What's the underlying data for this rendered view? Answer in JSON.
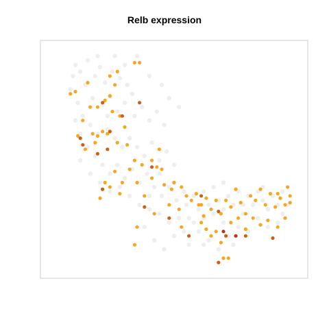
{
  "chart_data": {
    "type": "scatter",
    "title": "Relb expression",
    "xlabel": "",
    "ylabel": "",
    "xlim": [
      0,
      100
    ],
    "ylim": [
      0,
      100
    ],
    "axes_visible": false,
    "grid": false,
    "legend": "none",
    "colors": {
      "background": "#ebebeb",
      "low": "#f5a623",
      "mid": "#c8621a",
      "high": "#b03a1e",
      "frame": "#cccccc"
    },
    "series": [
      {
        "level": "background",
        "points": [
          [
            10,
            93
          ],
          [
            12,
            90
          ],
          [
            15,
            95
          ],
          [
            18,
            88
          ],
          [
            20,
            92
          ],
          [
            22,
            85
          ],
          [
            25,
            90
          ],
          [
            28,
            87
          ],
          [
            30,
            93
          ],
          [
            33,
            80
          ],
          [
            14,
            84
          ],
          [
            17,
            78
          ],
          [
            21,
            75
          ],
          [
            24,
            79
          ],
          [
            27,
            72
          ],
          [
            30,
            76
          ],
          [
            34,
            70
          ],
          [
            37,
            74
          ],
          [
            40,
            68
          ],
          [
            43,
            72
          ],
          [
            46,
            66
          ],
          [
            8,
            82
          ],
          [
            11,
            76
          ],
          [
            13,
            70
          ],
          [
            16,
            66
          ],
          [
            19,
            62
          ],
          [
            23,
            64
          ],
          [
            26,
            60
          ],
          [
            29,
            56
          ],
          [
            32,
            60
          ],
          [
            35,
            56
          ],
          [
            38,
            52
          ],
          [
            41,
            58
          ],
          [
            44,
            50
          ],
          [
            47,
            54
          ],
          [
            50,
            48
          ],
          [
            10,
            68
          ],
          [
            12,
            62
          ],
          [
            15,
            56
          ],
          [
            18,
            52
          ],
          [
            21,
            48
          ],
          [
            24,
            44
          ],
          [
            27,
            48
          ],
          [
            30,
            42
          ],
          [
            33,
            46
          ],
          [
            36,
            40
          ],
          [
            39,
            44
          ],
          [
            42,
            38
          ],
          [
            45,
            34
          ],
          [
            48,
            38
          ],
          [
            51,
            32
          ],
          [
            16,
            44
          ],
          [
            20,
            40
          ],
          [
            24,
            36
          ],
          [
            28,
            38
          ],
          [
            32,
            34
          ],
          [
            36,
            30
          ],
          [
            40,
            28
          ],
          [
            44,
            26
          ],
          [
            48,
            22
          ],
          [
            52,
            24
          ],
          [
            38,
            20
          ],
          [
            42,
            14
          ],
          [
            46,
            10
          ],
          [
            50,
            16
          ],
          [
            54,
            18
          ],
          [
            56,
            24
          ],
          [
            58,
            22
          ],
          [
            60,
            28
          ],
          [
            62,
            24
          ],
          [
            64,
            30
          ],
          [
            66,
            26
          ],
          [
            68,
            32
          ],
          [
            70,
            28
          ],
          [
            72,
            34
          ],
          [
            74,
            30
          ],
          [
            76,
            36
          ],
          [
            78,
            30
          ],
          [
            80,
            34
          ],
          [
            82,
            30
          ],
          [
            84,
            36
          ],
          [
            86,
            32
          ],
          [
            88,
            28
          ],
          [
            90,
            34
          ],
          [
            92,
            30
          ],
          [
            94,
            26
          ],
          [
            96,
            30
          ],
          [
            62,
            36
          ],
          [
            66,
            38
          ],
          [
            70,
            40
          ],
          [
            58,
            34
          ],
          [
            55,
            30
          ],
          [
            60,
            18
          ],
          [
            64,
            14
          ],
          [
            68,
            10
          ],
          [
            72,
            16
          ],
          [
            76,
            20
          ],
          [
            80,
            18
          ],
          [
            84,
            24
          ],
          [
            88,
            20
          ],
          [
            92,
            22
          ],
          [
            74,
            12
          ],
          [
            78,
            26
          ],
          [
            50,
            40
          ],
          [
            54,
            36
          ],
          [
            26,
            97
          ],
          [
            35,
            97
          ],
          [
            40,
            88
          ],
          [
            45,
            84
          ],
          [
            48,
            78
          ],
          [
            52,
            74
          ],
          [
            9,
            88
          ],
          [
            31,
            84
          ],
          [
            19,
            97
          ],
          [
            23,
            70
          ],
          [
            12,
            50
          ],
          [
            44,
            44
          ],
          [
            40,
            34
          ],
          [
            56,
            12
          ],
          [
            62,
            12
          ],
          [
            86,
            38
          ],
          [
            94,
            36
          ],
          [
            70,
            22
          ]
        ]
      },
      {
        "level": "low",
        "points": [
          [
            34,
            94
          ],
          [
            36,
            94
          ],
          [
            24,
            88
          ],
          [
            10,
            81
          ],
          [
            15,
            85
          ],
          [
            27,
            90
          ],
          [
            26,
            84
          ],
          [
            8,
            80
          ],
          [
            16,
            74
          ],
          [
            19,
            74
          ],
          [
            22,
            77
          ],
          [
            24,
            79
          ],
          [
            25,
            72
          ],
          [
            28,
            70
          ],
          [
            30,
            65
          ],
          [
            13,
            68
          ],
          [
            11,
            61
          ],
          [
            17,
            62
          ],
          [
            19,
            61
          ],
          [
            21,
            63
          ],
          [
            23,
            62
          ],
          [
            18,
            58
          ],
          [
            14,
            55
          ],
          [
            27,
            58
          ],
          [
            31,
            57
          ],
          [
            34,
            50
          ],
          [
            37,
            48
          ],
          [
            41,
            50
          ],
          [
            44,
            55
          ],
          [
            43,
            47
          ],
          [
            22,
            40
          ],
          [
            20,
            33
          ],
          [
            24,
            38
          ],
          [
            26,
            45
          ],
          [
            29,
            40
          ],
          [
            32,
            46
          ],
          [
            35,
            40
          ],
          [
            28,
            35
          ],
          [
            38,
            34
          ],
          [
            41,
            42
          ],
          [
            45,
            46
          ],
          [
            46,
            39
          ],
          [
            50,
            40
          ],
          [
            53,
            38
          ],
          [
            55,
            34
          ],
          [
            57,
            32
          ],
          [
            59,
            35
          ],
          [
            61,
            30
          ],
          [
            63,
            33
          ],
          [
            65,
            28
          ],
          [
            67,
            32
          ],
          [
            69,
            26
          ],
          [
            71,
            32
          ],
          [
            73,
            29
          ],
          [
            75,
            37
          ],
          [
            77,
            31
          ],
          [
            79,
            26
          ],
          [
            81,
            34
          ],
          [
            83,
            32
          ],
          [
            85,
            37
          ],
          [
            87,
            30
          ],
          [
            89,
            35
          ],
          [
            91,
            29
          ],
          [
            93,
            33
          ],
          [
            95,
            30
          ],
          [
            97,
            34
          ],
          [
            96,
            38
          ],
          [
            61,
            22
          ],
          [
            63,
            19
          ],
          [
            65,
            16
          ],
          [
            67,
            18
          ],
          [
            69,
            13
          ],
          [
            73,
            22
          ],
          [
            76,
            24
          ],
          [
            79,
            19
          ],
          [
            82,
            24
          ],
          [
            85,
            21
          ],
          [
            88,
            23
          ],
          [
            92,
            20
          ],
          [
            95,
            24
          ],
          [
            97,
            31
          ],
          [
            48,
            30
          ],
          [
            52,
            28
          ],
          [
            42,
            26
          ],
          [
            35,
            20
          ],
          [
            49,
            37
          ],
          [
            92,
            35
          ],
          [
            53,
            20
          ],
          [
            60,
            30
          ],
          [
            62,
            25
          ],
          [
            34,
            12
          ],
          [
            70,
            6
          ],
          [
            72,
            6
          ]
        ]
      },
      {
        "level": "mid",
        "points": [
          [
            21,
            76
          ],
          [
            13,
            57
          ],
          [
            12,
            60
          ],
          [
            19,
            53
          ],
          [
            36,
            76
          ],
          [
            41,
            47
          ],
          [
            24,
            63
          ],
          [
            29,
            70
          ],
          [
            21,
            37
          ],
          [
            38,
            29
          ],
          [
            61,
            34
          ],
          [
            68,
            27
          ],
          [
            71,
            16
          ],
          [
            68,
            4
          ],
          [
            56,
            16
          ],
          [
            90,
            15
          ],
          [
            48,
            24
          ],
          [
            23,
            55
          ],
          [
            79,
            16
          ]
        ]
      },
      {
        "level": "high",
        "points": [
          [
            75,
            16
          ],
          [
            70,
            18
          ]
        ]
      }
    ]
  }
}
